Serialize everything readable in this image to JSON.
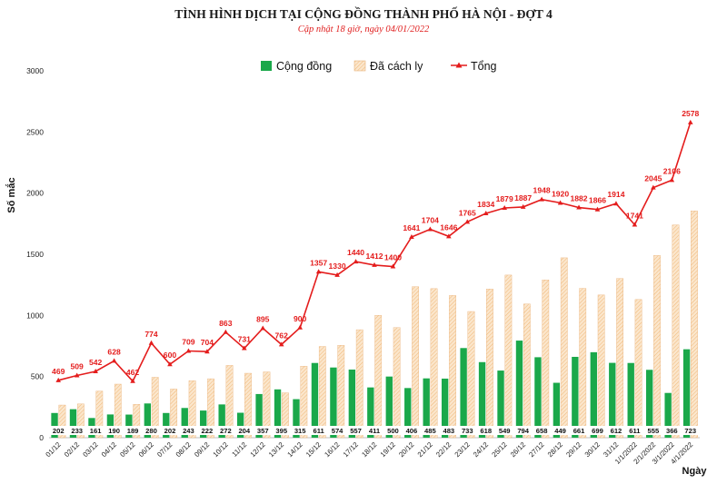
{
  "chart_data": {
    "type": "bar",
    "title": "TÌNH HÌNH DỊCH TẠI CỘNG ĐỒNG THÀNH PHỐ HÀ NỘI - ĐỢT 4",
    "subtitle": "Cập nhật 18 giờ, ngày 04/01/2022",
    "xlabel": "Ngày",
    "ylabel": "Số mắc",
    "ylim": [
      0,
      3000
    ],
    "yticks": [
      "0",
      "500",
      "1000",
      "1500",
      "2000",
      "2500",
      "3000"
    ],
    "legend_position": "top",
    "grid": false,
    "categories": [
      "01/12",
      "02/12",
      "03/12",
      "04/12",
      "05/12",
      "06/12",
      "07/12",
      "08/12",
      "09/12",
      "10/12",
      "11/12",
      "12/12",
      "13/12",
      "14/12",
      "15/12",
      "16/12",
      "17/12",
      "18/12",
      "19/12",
      "20/12",
      "21/12",
      "22/12",
      "23/12",
      "24/12",
      "25/12",
      "26/12",
      "27/12",
      "28/12",
      "29/12",
      "30/12",
      "31/12",
      "1/1/2022",
      "2/1/2022",
      "3/1/2022",
      "4/1/2022"
    ],
    "series": [
      {
        "name": "Cộng đồng",
        "kind": "bar",
        "color": "#1aa84a",
        "values": [
          202,
          233,
          161,
          190,
          189,
          280,
          202,
          243,
          222,
          272,
          204,
          357,
          395,
          315,
          611,
          574,
          557,
          411,
          500,
          406,
          485,
          483,
          733,
          618,
          549,
          794,
          658,
          449,
          661,
          699,
          612,
          611,
          555,
          366,
          723
        ]
      },
      {
        "name": "Đã cách ly",
        "kind": "bar",
        "color": "#f8d9b4",
        "values": [
          267,
          276,
          381,
          438,
          273,
          494,
          398,
          466,
          482,
          591,
          527,
          538,
          367,
          585,
          746,
          756,
          883,
          1001,
          900,
          1235,
          1219,
          1163,
          1032,
          1216,
          1330,
          1093,
          1290,
          1471,
          1221,
          1167,
          1302,
          1130,
          1490,
          1740,
          1855
        ]
      },
      {
        "name": "Tổng",
        "kind": "line",
        "color": "#e41c1c",
        "values": [
          469,
          509,
          542,
          628,
          462,
          774,
          600,
          709,
          704,
          863,
          731,
          895,
          762,
          900,
          1357,
          1330,
          1440,
          1412,
          1400,
          1641,
          1704,
          1646,
          1765,
          1834,
          1879,
          1887,
          1948,
          1920,
          1882,
          1866,
          1914,
          1741,
          2045,
          2106,
          2578
        ]
      }
    ]
  }
}
